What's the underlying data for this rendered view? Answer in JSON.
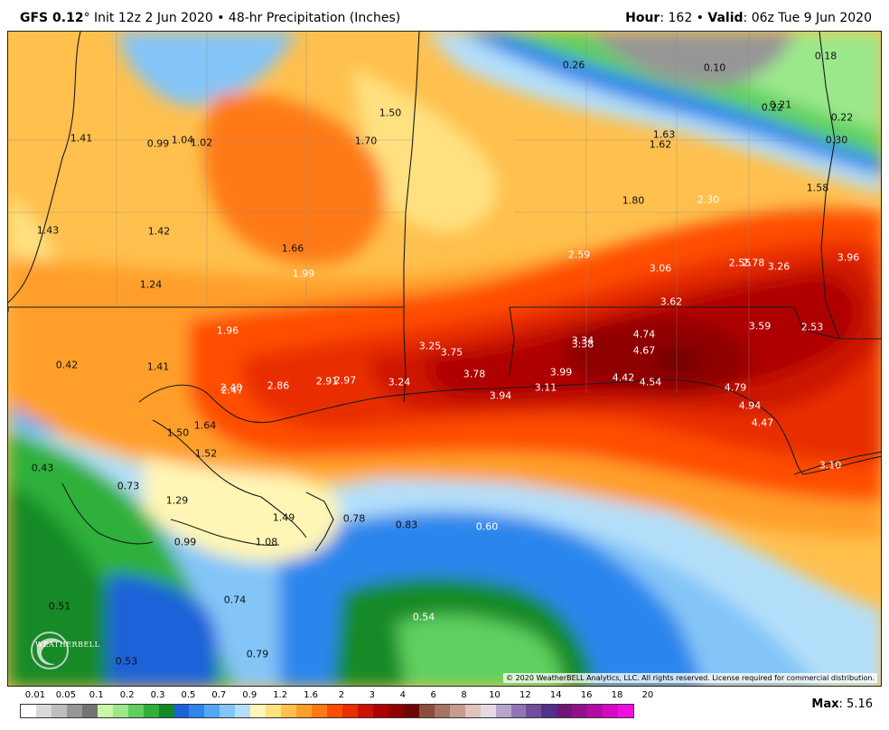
{
  "header": {
    "model": "GFS 0.12",
    "degree": "°",
    "description": " Init 12z 2 Jun 2020 • 48-hr Precipitation (Inches)",
    "hour_label": "Hour",
    "hour_value": ": 162 • ",
    "valid_label": "Valid",
    "valid_value": ": 06z Tue 9 Jun 2020"
  },
  "map": {
    "values": [
      {
        "text": "0.26",
        "light": false
      },
      {
        "text": "0.10",
        "light": false
      },
      {
        "text": "0.18",
        "light": false
      },
      {
        "text": "0.22",
        "light": false
      },
      {
        "text": "0.21",
        "light": false
      },
      {
        "text": "0.22",
        "light": false
      },
      {
        "text": "0.30",
        "light": false
      },
      {
        "text": "1.50",
        "light": false
      },
      {
        "text": "1.70",
        "light": false
      },
      {
        "text": "1.63",
        "light": false
      },
      {
        "text": "1.62",
        "light": false
      },
      {
        "text": "1.41",
        "light": false
      },
      {
        "text": "0.99",
        "light": false
      },
      {
        "text": "1.04",
        "light": false
      },
      {
        "text": "1.02",
        "light": false
      },
      {
        "text": "1.58",
        "light": false
      },
      {
        "text": "1.80",
        "light": false
      },
      {
        "text": "2.30",
        "light": true
      },
      {
        "text": "1.43",
        "light": false
      },
      {
        "text": "1.42",
        "light": false
      },
      {
        "text": "1.66",
        "light": false
      },
      {
        "text": "2.59",
        "light": true
      },
      {
        "text": "3.06",
        "light": true
      },
      {
        "text": "2.55",
        "light": true
      },
      {
        "text": "2.78",
        "light": true
      },
      {
        "text": "3.26",
        "light": true
      },
      {
        "text": "3.96",
        "light": true
      },
      {
        "text": "1.99",
        "light": true
      },
      {
        "text": "1.24",
        "light": false
      },
      {
        "text": "3.62",
        "light": true
      },
      {
        "text": "1.96",
        "light": true
      },
      {
        "text": "3.59",
        "light": true
      },
      {
        "text": "2.53",
        "light": true
      },
      {
        "text": "4.74",
        "light": true
      },
      {
        "text": "3.34",
        "light": true
      },
      {
        "text": "3.38",
        "light": true
      },
      {
        "text": "3.25",
        "light": true
      },
      {
        "text": "3.75",
        "light": true
      },
      {
        "text": "4.67",
        "light": true
      },
      {
        "text": "0.42",
        "light": false
      },
      {
        "text": "1.41",
        "light": false
      },
      {
        "text": "3.78",
        "light": true
      },
      {
        "text": "3.99",
        "light": true
      },
      {
        "text": "4.42",
        "light": true
      },
      {
        "text": "4.54",
        "light": true
      },
      {
        "text": "2.86",
        "light": true
      },
      {
        "text": "2.91",
        "light": true
      },
      {
        "text": "2.97",
        "light": true
      },
      {
        "text": "3.24",
        "light": true
      },
      {
        "text": "2.40",
        "light": true
      },
      {
        "text": "2.47",
        "light": true
      },
      {
        "text": "3.11",
        "light": true
      },
      {
        "text": "3.94",
        "light": true
      },
      {
        "text": "4.79",
        "light": true
      },
      {
        "text": "4.94",
        "light": true
      },
      {
        "text": "1.64",
        "light": false
      },
      {
        "text": "4.47",
        "light": true
      },
      {
        "text": "1.50",
        "light": false
      },
      {
        "text": "1.52",
        "light": false
      },
      {
        "text": "0.43",
        "light": false
      },
      {
        "text": "3.10",
        "light": true
      },
      {
        "text": "0.73",
        "light": false
      },
      {
        "text": "1.29",
        "light": false
      },
      {
        "text": "1.49",
        "light": false
      },
      {
        "text": "0.78",
        "light": false
      },
      {
        "text": "0.83",
        "light": false
      },
      {
        "text": "0.60",
        "light": true
      },
      {
        "text": "0.99",
        "light": false
      },
      {
        "text": "1.08",
        "light": false
      },
      {
        "text": "0.51",
        "light": false
      },
      {
        "text": "0.74",
        "light": false
      },
      {
        "text": "0.54",
        "light": true
      },
      {
        "text": "0.53",
        "light": false
      },
      {
        "text": "0.79",
        "light": false
      }
    ],
    "copyright": "© 2020 WeatherBELL Analytics, LLC. All rights reserved. License required for commercial distribution.",
    "logo_text": "WEATHERBELL"
  },
  "legend": {
    "ticks": [
      "0.01",
      "0.05",
      "0.1",
      "0.2",
      "0.3",
      "0.5",
      "0.7",
      "0.9",
      "1.2",
      "1.6",
      "2",
      "3",
      "4",
      "6",
      "8",
      "10",
      "12",
      "14",
      "16",
      "18",
      "20"
    ],
    "colors": [
      "#ffffff",
      "#d9d9d9",
      "#bdbdbd",
      "#969696",
      "#737373",
      "#c7f7a9",
      "#9be88c",
      "#5fd060",
      "#2eb03a",
      "#138a26",
      "#1b62d8",
      "#2c86ec",
      "#52a8f4",
      "#84c5f8",
      "#b4dffa",
      "#fff6b5",
      "#ffe180",
      "#ffc04d",
      "#ff9f2b",
      "#ff7a14",
      "#ff4d00",
      "#e82d00",
      "#cc1200",
      "#ae0000",
      "#8f0000",
      "#6f0606",
      "#8e4d3c",
      "#a87266",
      "#c69a8f",
      "#e0c3bb",
      "#e6d9e3",
      "#b9a5cc",
      "#8e76b4",
      "#6e4e9d",
      "#53308a",
      "#711677",
      "#930e8d",
      "#b60aa6",
      "#d60ac2",
      "#f20ee0"
    ]
  },
  "max": {
    "label": "Max",
    "value": ": 5.16"
  }
}
